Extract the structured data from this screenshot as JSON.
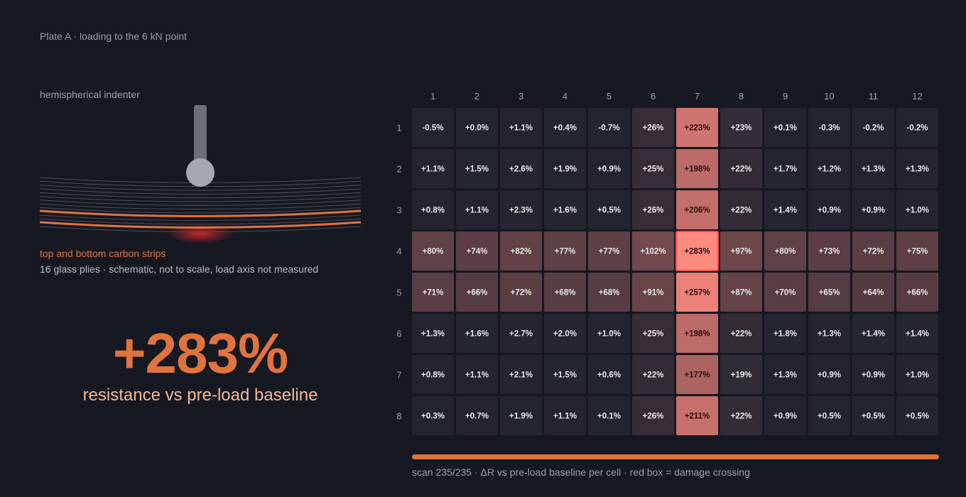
{
  "header": {
    "title": "Plate A · loading to the 6 kN point"
  },
  "schematic": {
    "indenter_label": "hemispherical indenter",
    "strips_label": "top and bottom carbon strips",
    "plies_label": "16 glass plies · schematic, not to scale, load axis not measured"
  },
  "readout": {
    "value": "+283%",
    "caption": "resistance vs pre-load baseline"
  },
  "scan": {
    "progress": 1.0,
    "note": "scan 235/235 · ΔR vs pre-load baseline per cell · red box = damage crossing"
  },
  "colors": {
    "accent": "#e0733e",
    "cell_base": "#22242f",
    "cell_hot": "#ff8a80",
    "damage_box": "#ff4d4d"
  },
  "chart_data": {
    "type": "heatmap",
    "x_labels": [
      "1",
      "2",
      "3",
      "4",
      "5",
      "6",
      "7",
      "8",
      "9",
      "10",
      "11",
      "12"
    ],
    "y_labels": [
      "1",
      "2",
      "3",
      "4",
      "5",
      "6",
      "7",
      "8"
    ],
    "values": [
      [
        -0.5,
        0.0,
        1.1,
        0.4,
        -0.7,
        26,
        223,
        23,
        0.1,
        -0.3,
        -0.2,
        -0.2
      ],
      [
        1.1,
        1.5,
        2.6,
        1.9,
        0.9,
        25,
        198,
        22,
        1.7,
        1.2,
        1.3,
        1.3
      ],
      [
        0.8,
        1.1,
        2.3,
        1.6,
        0.5,
        26,
        206,
        22,
        1.4,
        0.9,
        0.9,
        1.0
      ],
      [
        80,
        74,
        82,
        77,
        77,
        102,
        283,
        97,
        80,
        73,
        72,
        75
      ],
      [
        71,
        66,
        72,
        68,
        68,
        91,
        257,
        87,
        70,
        65,
        64,
        66
      ],
      [
        1.3,
        1.6,
        2.7,
        2.0,
        1.0,
        25,
        198,
        22,
        1.8,
        1.3,
        1.4,
        1.4
      ],
      [
        0.8,
        1.1,
        2.1,
        1.5,
        0.6,
        22,
        177,
        19,
        1.3,
        0.9,
        0.9,
        1.0
      ],
      [
        0.3,
        0.7,
        1.9,
        1.1,
        0.1,
        26,
        211,
        22,
        0.9,
        0.5,
        0.5,
        0.5
      ]
    ],
    "labels": [
      [
        "-0.5%",
        "+0.0%",
        "+1.1%",
        "+0.4%",
        "-0.7%",
        "+26%",
        "+223%",
        "+23%",
        "+0.1%",
        "-0.3%",
        "-0.2%",
        "-0.2%"
      ],
      [
        "+1.1%",
        "+1.5%",
        "+2.6%",
        "+1.9%",
        "+0.9%",
        "+25%",
        "+198%",
        "+22%",
        "+1.7%",
        "+1.2%",
        "+1.3%",
        "+1.3%"
      ],
      [
        "+0.8%",
        "+1.1%",
        "+2.3%",
        "+1.6%",
        "+0.5%",
        "+26%",
        "+206%",
        "+22%",
        "+1.4%",
        "+0.9%",
        "+0.9%",
        "+1.0%"
      ],
      [
        "+80%",
        "+74%",
        "+82%",
        "+77%",
        "+77%",
        "+102%",
        "+283%",
        "+97%",
        "+80%",
        "+73%",
        "+72%",
        "+75%"
      ],
      [
        "+71%",
        "+66%",
        "+72%",
        "+68%",
        "+68%",
        "+91%",
        "+257%",
        "+87%",
        "+70%",
        "+65%",
        "+64%",
        "+66%"
      ],
      [
        "+1.3%",
        "+1.6%",
        "+2.7%",
        "+2.0%",
        "+1.0%",
        "+25%",
        "+198%",
        "+22%",
        "+1.8%",
        "+1.3%",
        "+1.4%",
        "+1.4%"
      ],
      [
        "+0.8%",
        "+1.1%",
        "+2.1%",
        "+1.5%",
        "+0.6%",
        "+22%",
        "+177%",
        "+19%",
        "+1.3%",
        "+0.9%",
        "+0.9%",
        "+1.0%"
      ],
      [
        "+0.3%",
        "+0.7%",
        "+1.9%",
        "+1.1%",
        "+0.1%",
        "+26%",
        "+211%",
        "+22%",
        "+0.9%",
        "+0.5%",
        "+0.5%",
        "+0.5%"
      ]
    ],
    "highlight": {
      "row": 4,
      "col": 7
    },
    "value_max": 283
  }
}
